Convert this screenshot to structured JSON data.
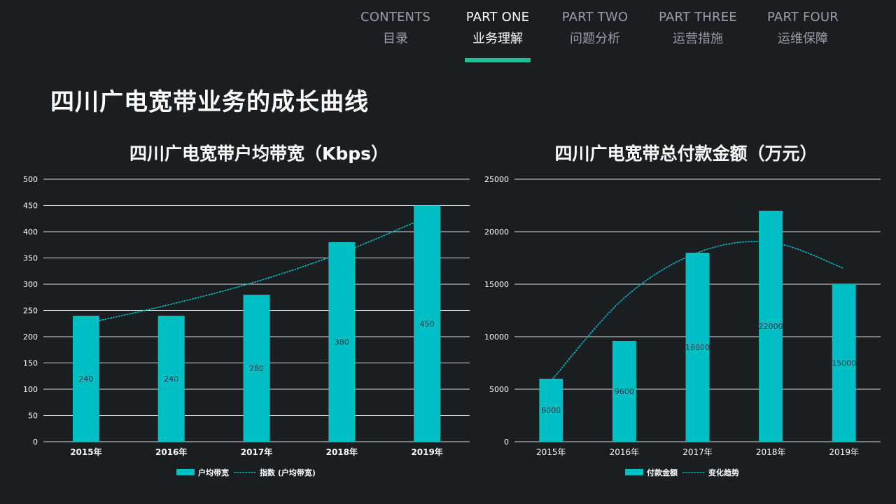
{
  "nav": {
    "items": [
      {
        "en": "CONTENTS",
        "zh": "目录",
        "active": false
      },
      {
        "en": "PART ONE",
        "zh": "业务理解",
        "active": true
      },
      {
        "en": "PART TWO",
        "zh": "问题分析",
        "active": false
      },
      {
        "en": "PART THREE",
        "zh": "运营措施",
        "active": false
      },
      {
        "en": "PART FOUR",
        "zh": "运维保障",
        "active": false
      }
    ]
  },
  "page": {
    "title": "四川广电宽带业务的成长曲线"
  },
  "colors": {
    "bar": "#00bfc4",
    "accent": "#1fbf95",
    "background": "#1b1e21",
    "grid": "#d9d9d9"
  },
  "chart_data": [
    {
      "type": "bar",
      "title": "四川广电宽带户均带宽（Kbps）",
      "categories": [
        "2015年",
        "2016年",
        "2017年",
        "2018年",
        "2019年"
      ],
      "series": [
        {
          "name": "户均带宽",
          "values": [
            240,
            240,
            280,
            380,
            450
          ],
          "kind": "bar"
        },
        {
          "name": "指数 (户均带宽)",
          "kind": "trendline-exponential",
          "values": [
            225,
            262,
            305,
            360,
            428
          ]
        }
      ],
      "yticks": [
        "0",
        "50",
        "100",
        "150",
        "200",
        "250",
        "300",
        "350",
        "400",
        "450",
        "500"
      ],
      "data_labels": [
        "240",
        "240",
        "280",
        "380",
        "450"
      ],
      "ylim": [
        0,
        500
      ],
      "grid": true,
      "legend": "bottom"
    },
    {
      "type": "bar",
      "title": "四川广电宽带总付款金额（万元）",
      "categories": [
        "2015年",
        "2016年",
        "2017年",
        "2018年",
        "2019年"
      ],
      "series": [
        {
          "name": "付款金额",
          "values": [
            6000,
            9600,
            18000,
            22000,
            15000
          ],
          "kind": "bar"
        },
        {
          "name": "变化趋势",
          "kind": "trendline-polynomial",
          "values": [
            5800,
            13700,
            18000,
            19000,
            16500
          ]
        }
      ],
      "yticks": [
        "0",
        "5000",
        "10000",
        "15000",
        "20000",
        "25000"
      ],
      "data_labels": [
        "6000",
        "9600",
        "18000",
        "22000",
        "15000"
      ],
      "ylim": [
        0,
        25000
      ],
      "grid": true,
      "legend": "bottom"
    }
  ]
}
